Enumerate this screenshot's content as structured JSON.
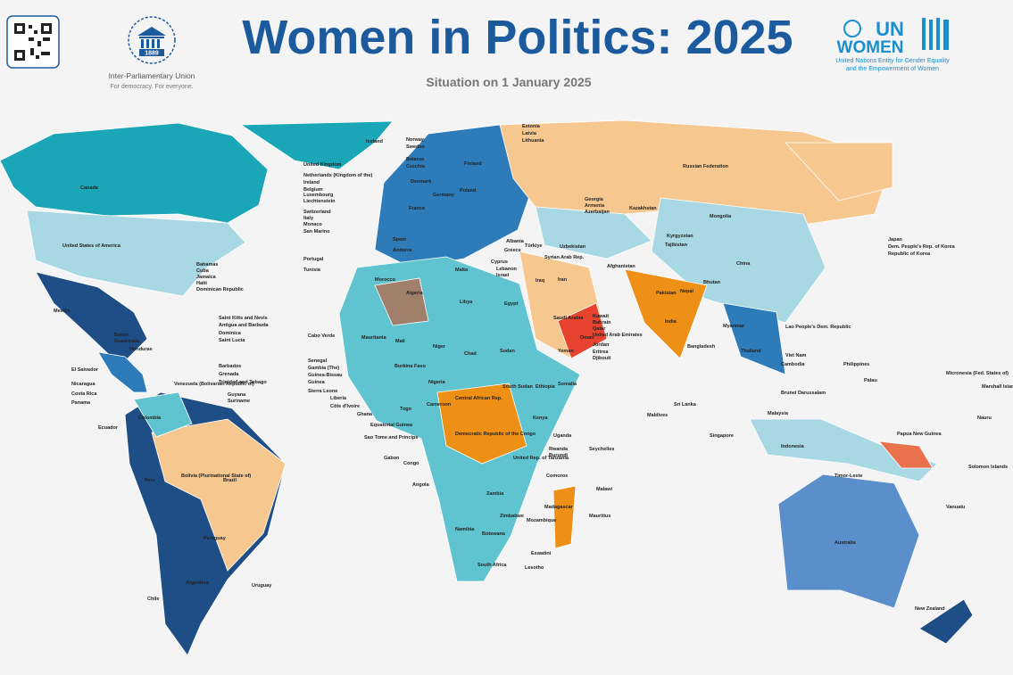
{
  "header": {
    "ipu_logo_year": "1889",
    "ipu_name": "Inter-Parliamentary Union",
    "ipu_tagline": "For democracy. For everyone.",
    "title": "Women in Politics: 2025",
    "subtitle": "Situation on 1 January 2025",
    "un_logo_top": "UN",
    "un_logo_bottom": "WOMEN",
    "un_tagline_1": "United Nations Entity for Gender Equality",
    "un_tagline_2": "and the Empowerment of Women"
  },
  "map": {
    "country_labels": [
      "Canada",
      "United States of America",
      "Mexico",
      "Iceland",
      "Norway",
      "Sweden",
      "Finland",
      "Estonia",
      "Latvia",
      "Lithuania",
      "United Kingdom",
      "Netherlands (Kingdom of the)",
      "Ireland",
      "Belgium",
      "Luxembourg",
      "Liechtenstein",
      "Switzerland",
      "Italy",
      "Monaco",
      "San Marino",
      "Denmark",
      "Germany",
      "Poland",
      "Belarus",
      "Czechia",
      "France",
      "Spain",
      "Portugal",
      "Tunisia",
      "Andorra",
      "Malta",
      "Russian Federation",
      "Kazakhstan",
      "Mongolia",
      "China",
      "Japan",
      "Dem. People's Rep. of Korea",
      "Republic of Korea",
      "India",
      "Pakistan",
      "Afghanistan",
      "Bangladesh",
      "Myanmar",
      "Thailand",
      "Viet Nam",
      "Cambodia",
      "Lao People's Dem. Republic",
      "Philippines",
      "Malaysia",
      "Indonesia",
      "Singapore",
      "Papua New Guinea",
      "Australia",
      "New Zealand",
      "Solomon Islands",
      "Vanuatu",
      "Micronesia (Fed. States of)",
      "Palau",
      "Nauru",
      "Marshall Islands",
      "Timor-Leste",
      "Sri Lanka",
      "Maldives",
      "Brunei Darussalam",
      "Algeria",
      "Morocco",
      "Libya",
      "Egypt",
      "Mauritania",
      "Mali",
      "Niger",
      "Chad",
      "Sudan",
      "South Sudan",
      "Ethiopia",
      "Somalia",
      "Kenya",
      "Nigeria",
      "Cameroon",
      "Central African Rep.",
      "Democratic Republic of the Congo",
      "United Rep. of Tanzania",
      "Angola",
      "Zambia",
      "Zimbabwe",
      "Namibia",
      "Botswana",
      "South Africa",
      "Mozambique",
      "Madagascar",
      "Mauritius",
      "Malawi",
      "Seychelles",
      "Comoros",
      "Lesotho",
      "Eswatini",
      "Uganda",
      "Rwanda",
      "Burundi",
      "Gabon",
      "Congo",
      "Togo",
      "Ghana",
      "Liberia",
      "Côte d'Ivoire",
      "Sierra Leone",
      "Guinea",
      "Guinea-Bissau",
      "Gambia (The)",
      "Senegal",
      "Cabo Verde",
      "Burkina Faso",
      "Sao Tome and Principe",
      "Equatorial Guinea",
      "Saudi Arabia",
      "Iran",
      "Iraq",
      "Yemen",
      "Oman",
      "Syrian Arab Rep.",
      "Türkiye",
      "Greece",
      "Albania",
      "Cyprus",
      "Lebanon",
      "Israel",
      "Jordan",
      "Kuwait",
      "Bahrain",
      "Qatar",
      "United Arab Emirates",
      "Eritrea",
      "Djibouti",
      "Georgia",
      "Armenia",
      "Azerbaijan",
      "Uzbekistan",
      "Kyrgyzstan",
      "Tajikistan",
      "Nepal",
      "Bhutan",
      "Brazil",
      "Colombia",
      "Peru",
      "Bolivia (Plurinational State of)",
      "Paraguay",
      "Argentina",
      "Chile",
      "Uruguay",
      "Ecuador",
      "Venezuela (Bolivarian Republic of)",
      "Guyana",
      "Suriname",
      "Bahamas",
      "Cuba",
      "Jamaica",
      "Haiti",
      "Dominican Republic",
      "Belize",
      "Guatemala",
      "Honduras",
      "El Salvador",
      "Nicaragua",
      "Costa Rica",
      "Panama",
      "Saint Kitts and Nevis",
      "Antigua and Barbuda",
      "Dominica",
      "Saint Lucia",
      "Barbados",
      "Grenada",
      "Trinidad and Tobago"
    ]
  }
}
